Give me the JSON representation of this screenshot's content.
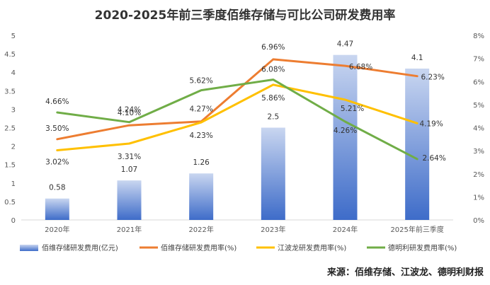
{
  "chart_data": {
    "type": "bar+line",
    "title": "2020-2025年前三季度佰维存储与可比公司研发费用率",
    "categories": [
      "2020年",
      "2021年",
      "2022年",
      "2023年",
      "2024年",
      "2025年前三季度"
    ],
    "left_axis": {
      "min": 0,
      "max": 5,
      "step": 0.5,
      "ticks": [
        "0",
        "0.5",
        "1",
        "1.5",
        "2",
        "2.5",
        "3",
        "3.5",
        "4",
        "4.5",
        "5"
      ]
    },
    "right_axis": {
      "min": 0,
      "max": 8,
      "step": 1,
      "ticks": [
        "0%",
        "1%",
        "2%",
        "3%",
        "4%",
        "5%",
        "6%",
        "7%",
        "8%"
      ]
    },
    "bars": {
      "name": "佰维存储研发费用(亿元)",
      "values": [
        0.58,
        1.07,
        1.26,
        2.5,
        4.47,
        4.1
      ],
      "labels": [
        "0.58",
        "1.07",
        "1.26",
        "2.5",
        "4.47",
        "4.1"
      ],
      "color": "#4472C4"
    },
    "series": [
      {
        "name": "佰维存储研发费用率(%)",
        "color": "#ED7D31",
        "values": [
          3.5,
          4.1,
          4.27,
          6.96,
          6.68,
          6.23
        ],
        "labels": [
          "3.50%",
          "4.10%",
          "4.27%",
          "6.96%",
          "6.68%",
          "6.23%"
        ]
      },
      {
        "name": "江波龙研发费用率(%)",
        "color": "#FFC000",
        "values": [
          3.02,
          3.31,
          4.23,
          5.86,
          5.21,
          4.19
        ],
        "labels": [
          "3.02%",
          "3.31%",
          "4.23%",
          "5.86%",
          "5.21%",
          "4.19%"
        ]
      },
      {
        "name": "德明利研发费用率(%)",
        "color": "#70AD47",
        "values": [
          4.66,
          4.24,
          5.62,
          6.08,
          4.26,
          2.64
        ],
        "labels": [
          "4.66%",
          "4.24%",
          "5.62%",
          "6.08%",
          "4.26%",
          "2.64%"
        ]
      }
    ],
    "legend_position": "bottom"
  },
  "source": "来源：佰维存储、江波龙、德明利财报"
}
